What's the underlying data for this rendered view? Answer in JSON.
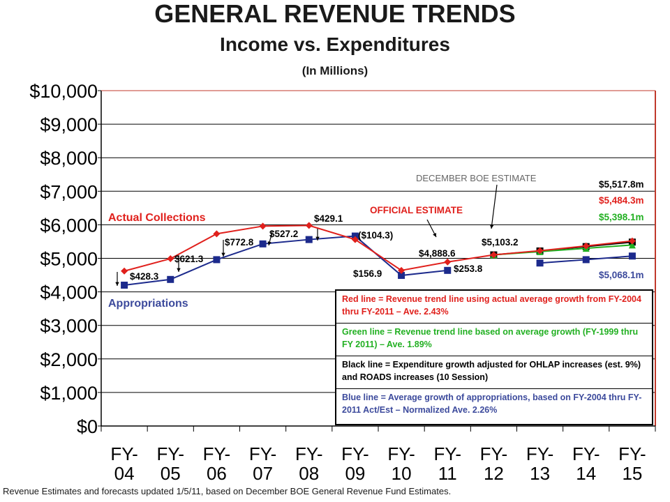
{
  "title": "GENERAL REVENUE TRENDS",
  "subtitle": "Income vs. Expenditures",
  "units": "(In Millions)",
  "footer": "Revenue Estimates and forecasts updated 1/5/11, based on December BOE General Revenue Fund Estimates.",
  "colors": {
    "red": "#e0201c",
    "blue": "#1c2a8c",
    "green": "#22b022",
    "black": "#000000",
    "axis_border": "#c0392b",
    "label_blue": "#3c4a9c",
    "label_gray": "#666666"
  },
  "chart_data": {
    "type": "line",
    "categories": [
      [
        "FY-",
        "04"
      ],
      [
        "FY-",
        "05"
      ],
      [
        "FY-",
        "06"
      ],
      [
        "FY-",
        "07"
      ],
      [
        "FY-",
        "08"
      ],
      [
        "FY-",
        "09"
      ],
      [
        "FY-",
        "10"
      ],
      [
        "FY-",
        "11"
      ],
      [
        "FY-",
        "12"
      ],
      [
        "FY-",
        "13"
      ],
      [
        "FY-",
        "14"
      ],
      [
        "FY-",
        "15"
      ]
    ],
    "ylim": [
      0,
      10000
    ],
    "yticks": [
      0,
      1000,
      2000,
      3000,
      4000,
      5000,
      6000,
      7000,
      8000,
      9000,
      10000
    ],
    "ytick_labels": [
      "$0",
      "$1,000",
      "$2,000",
      "$3,000",
      "$4,000",
      "$5,000",
      "$6,000",
      "$7,000",
      "$8,000",
      "$9,000",
      "$10,000"
    ],
    "grid": true,
    "series": [
      {
        "key": "actual_collections",
        "color": "#e0201c",
        "marker": "diamond",
        "values": [
          4620,
          4990,
          5730,
          5960,
          5980,
          5560,
          4640,
          4890,
          5103,
          5227,
          5370,
          5518
        ]
      },
      {
        "key": "appropriations",
        "color": "#1c2a8c",
        "marker": "square",
        "values": [
          4200,
          4370,
          4960,
          5430,
          5560,
          5664,
          4490,
          4640,
          null,
          null,
          null,
          null
        ]
      },
      {
        "key": "blue_trend",
        "color": "#1c2a8c",
        "marker": "square",
        "values": [
          null,
          null,
          null,
          null,
          null,
          null,
          null,
          null,
          null,
          4860,
          4960,
          5068
        ]
      },
      {
        "key": "green_trend",
        "color": "#22b022",
        "marker": "triangle",
        "values": [
          null,
          null,
          null,
          null,
          null,
          null,
          null,
          null,
          5103,
          5200,
          5300,
          5398
        ]
      },
      {
        "key": "black_trend",
        "color": "#000000",
        "marker": "square",
        "values": [
          null,
          null,
          null,
          null,
          null,
          null,
          null,
          null,
          5103,
          5220,
          5350,
          5484
        ]
      }
    ],
    "series_labels": [
      {
        "text": "Actual Collections",
        "color": "#e0201c"
      },
      {
        "text": "Appropriations",
        "color": "#3c4a9c"
      }
    ],
    "annotations": [
      {
        "text": "$428.3"
      },
      {
        "text": "$621.3"
      },
      {
        "text": "$772.8"
      },
      {
        "text": "$527.2"
      },
      {
        "text": "$429.1"
      },
      {
        "text": "($104.3)"
      },
      {
        "text": "$156.9"
      },
      {
        "text": "$4,888.6"
      },
      {
        "text": "$253.8"
      },
      {
        "text": "$5,103.2"
      },
      {
        "text": "OFFICIAL ESTIMATE"
      },
      {
        "text": "DECEMBER BOE ESTIMATE"
      },
      {
        "text": "$5,517.8m"
      },
      {
        "text": "$5,484.3m"
      },
      {
        "text": "$5,398.1m"
      },
      {
        "text": "$5,068.1m"
      }
    ],
    "legend": [
      {
        "text": "Red line = Revenue trend line using actual average growth from FY-2004 thru FY-2011 – Ave. 2.43%",
        "color": "#e0201c"
      },
      {
        "text": "Green line = Revenue trend line based on average growth (FY-1999 thru FY 2011) – Ave. 1.89%",
        "color": "#22b022"
      },
      {
        "text": "Black line = Expenditure growth adjusted for OHLAP increases (est. 9%) and ROADS increases (10 Session)",
        "color": "#000000"
      },
      {
        "text": "Blue line = Average growth of appropriations, based on FY-2004 thru FY-2011 Act/Est – Normalized Ave. 2.26%",
        "color": "#3c4a9c"
      }
    ],
    "legend_placement": "lower-right"
  }
}
